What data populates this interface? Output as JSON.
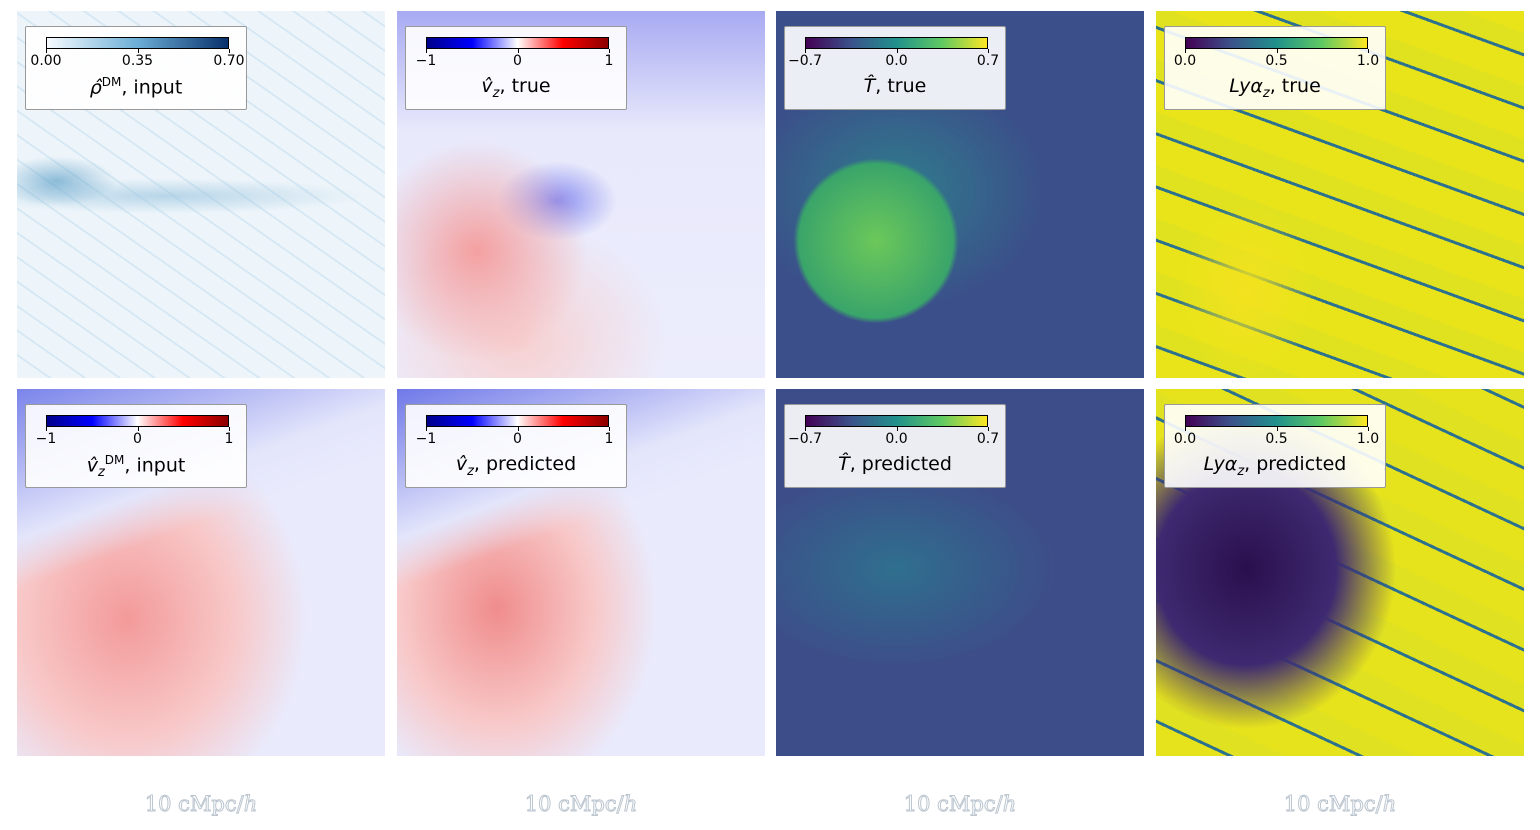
{
  "panels": [
    {
      "ticks": [
        "0.00",
        "0.35",
        "0.70"
      ],
      "label": {
        "symbol": "ρ̂",
        "sup": "DM",
        "suffix": ", input"
      }
    },
    {
      "ticks": [
        "−1",
        "0",
        "1"
      ],
      "label": {
        "symbol": "v̂",
        "sub": "z",
        "suffix": ", true"
      }
    },
    {
      "ticks": [
        "−0.7",
        "0.0",
        "0.7"
      ],
      "label": {
        "symbol": "T̂",
        "suffix": ", true"
      }
    },
    {
      "ticks": [
        "0.0",
        "0.5",
        "1.0"
      ],
      "label": {
        "symbol": "Lyα",
        "sub": "z",
        "suffix": ", true"
      }
    },
    {
      "ticks": [
        "−1",
        "0",
        "1"
      ],
      "label": {
        "symbol": "v̂",
        "sub": "z",
        "sup": "DM",
        "suffix": ", input"
      }
    },
    {
      "ticks": [
        "−1",
        "0",
        "1"
      ],
      "label": {
        "symbol": "v̂",
        "sub": "z",
        "suffix": ", predicted"
      }
    },
    {
      "ticks": [
        "−0.7",
        "0.0",
        "0.7"
      ],
      "label": {
        "symbol": "T̂",
        "suffix": ", predicted"
      }
    },
    {
      "ticks": [
        "0.0",
        "0.5",
        "1.0"
      ],
      "label": {
        "symbol": "Lyα",
        "sub": "z",
        "suffix": ", predicted"
      }
    }
  ],
  "scale_bars": [
    {
      "text": "10 cMpc/",
      "unit": "h"
    },
    {
      "text": "10 cMpc/",
      "unit": "h"
    },
    {
      "text": "10 cMpc/",
      "unit": "h"
    },
    {
      "text": "10 cMpc/",
      "unit": "h"
    }
  ]
}
